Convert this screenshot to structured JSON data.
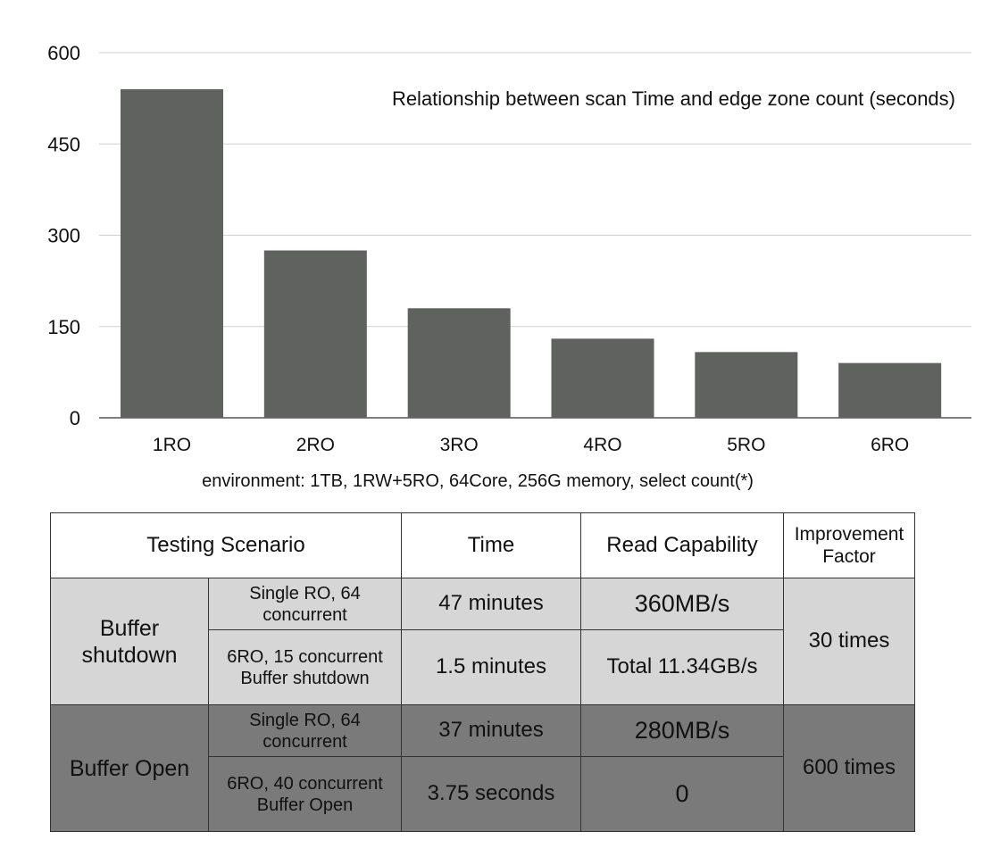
{
  "chart_data": {
    "type": "bar",
    "title": "Relationship between scan Time and edge zone count (seconds)",
    "categories": [
      "1RO",
      "2RO",
      "3RO",
      "4RO",
      "5RO",
      "6RO"
    ],
    "values": [
      540,
      275,
      180,
      130,
      108,
      90
    ],
    "ylim": [
      0,
      600
    ],
    "yticks": [
      0,
      150,
      300,
      450,
      600
    ],
    "grid": true,
    "bar_color": "#5f625f"
  },
  "caption": "environment: 1TB, 1RW+5RO, 64Core, 256G memory, select count(*)",
  "table": {
    "headers": {
      "scenario": "Testing Scenario",
      "time": "Time",
      "read": "Read Capability",
      "factor": "Improvement Factor"
    },
    "groups": [
      {
        "name": "Buffer shutdown",
        "factor": "30 times",
        "rows": [
          {
            "scenario": "Single RO, 64 concurrent",
            "time": "47 minutes",
            "read": "360MB/s"
          },
          {
            "scenario": "6RO, 15 concurrent Buffer shutdown",
            "time": "1.5 minutes",
            "read": "Total 11.34GB/s"
          }
        ]
      },
      {
        "name": "Buffer Open",
        "factor": "600 times",
        "rows": [
          {
            "scenario": "Single RO, 64 concurrent",
            "time": "37 minutes",
            "read": "280MB/s"
          },
          {
            "scenario": "6RO, 40 concurrent Buffer Open",
            "time": "3.75 seconds",
            "read": "0"
          }
        ]
      }
    ]
  }
}
